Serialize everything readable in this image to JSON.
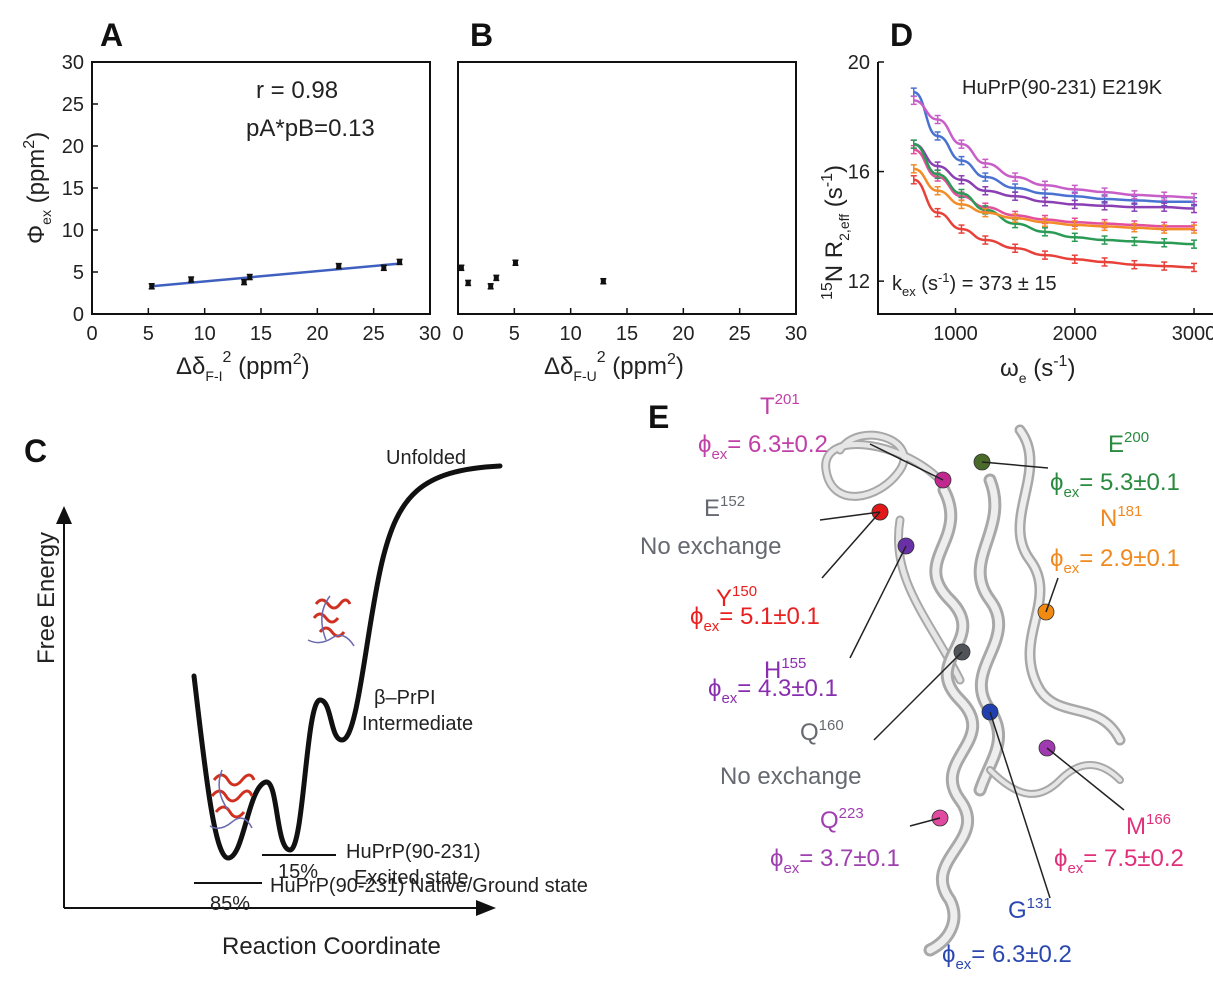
{
  "panel_labels": {
    "A": "A",
    "B": "B",
    "C": "C",
    "D": "D",
    "E": "E"
  },
  "chart_data": [
    {
      "id": "A",
      "type": "scatter",
      "xlim": [
        0,
        30
      ],
      "ylim": [
        0,
        30
      ],
      "xticks": [
        0,
        5,
        10,
        15,
        20,
        25,
        30
      ],
      "yticks": [
        0,
        5,
        10,
        15,
        20,
        25,
        30
      ],
      "xlabel": "Δδ",
      "xlabel_sub": "F-I",
      "xlabel_sup": "2",
      "xlabel_unit": " (ppm",
      "xlabel_unit_sup": "2",
      "xlabel_close": ")",
      "ylabel": "Φ",
      "ylabel_sub": "ex",
      "ylabel_unit": " (ppm",
      "ylabel_unit_sup": "2",
      "ylabel_close": ")",
      "annotations": [
        "r = 0.98",
        "pA*pB=0.13"
      ],
      "points": [
        {
          "x": 5.3,
          "y": 3.3,
          "err": 0.3
        },
        {
          "x": 8.8,
          "y": 4.1,
          "err": 0.3
        },
        {
          "x": 13.5,
          "y": 3.8,
          "err": 0.3
        },
        {
          "x": 14.0,
          "y": 4.4,
          "err": 0.3
        },
        {
          "x": 21.9,
          "y": 5.7,
          "err": 0.3
        },
        {
          "x": 25.9,
          "y": 5.5,
          "err": 0.3
        },
        {
          "x": 27.3,
          "y": 6.2,
          "err": 0.3
        }
      ],
      "fit": {
        "x": [
          5.3,
          27.3
        ],
        "y": [
          3.3,
          6.0
        ],
        "color": "#4060c0"
      }
    },
    {
      "id": "B",
      "type": "scatter",
      "xlim": [
        0,
        30
      ],
      "ylim": [
        0,
        30
      ],
      "xticks": [
        0,
        5,
        10,
        15,
        20,
        25,
        30
      ],
      "xlabel": "Δδ",
      "xlabel_sub": "F-U",
      "xlabel_sup": "2",
      "xlabel_unit": " (ppm",
      "xlabel_unit_sup": "2",
      "xlabel_close": ")",
      "points": [
        {
          "x": 0.3,
          "y": 5.5,
          "err": 0.3
        },
        {
          "x": 0.9,
          "y": 3.7,
          "err": 0.3
        },
        {
          "x": 2.9,
          "y": 3.3,
          "err": 0.3
        },
        {
          "x": 3.4,
          "y": 4.3,
          "err": 0.3
        },
        {
          "x": 5.1,
          "y": 6.1,
          "err": 0.3
        },
        {
          "x": 12.9,
          "y": 3.9,
          "err": 0.3
        }
      ]
    },
    {
      "id": "D",
      "type": "line",
      "xlim": [
        350,
        3050
      ],
      "ylim": [
        10.8,
        20
      ],
      "xticks": [
        1000,
        2000,
        3000
      ],
      "yticks": [
        12,
        16,
        20
      ],
      "xlabel": "ω",
      "xlabel_sub": "e",
      "xlabel_unit": " (s",
      "xlabel_unit_sup": "-1",
      "xlabel_close": ")",
      "ylabel_pre_sup": "15",
      "ylabel": "N R",
      "ylabel_sub": "2,eff",
      "ylabel_unit": " (s",
      "ylabel_unit_sup": "-1",
      "ylabel_close": ")",
      "annotation": "HuPrP(90-231) E219K",
      "kex_label": "k",
      "kex_sub": "ex",
      "kex_unit": " (s",
      "kex_sup": "-1",
      "kex_value": ") = 373 ± 15",
      "x": [
        650,
        850,
        1050,
        1250,
        1500,
        1750,
        2000,
        2250,
        2500,
        2750,
        3000
      ],
      "series": [
        {
          "color": "#4a72d0",
          "values": [
            18.9,
            17.3,
            16.4,
            15.8,
            15.4,
            15.2,
            15.1,
            15.0,
            14.95,
            14.9,
            14.9
          ]
        },
        {
          "color": "#c85fc8",
          "values": [
            18.6,
            17.9,
            17.0,
            16.3,
            15.8,
            15.5,
            15.35,
            15.25,
            15.15,
            15.1,
            15.05
          ]
        },
        {
          "color": "#8a3fb3",
          "values": [
            17.0,
            16.2,
            15.7,
            15.3,
            15.1,
            14.9,
            14.8,
            14.75,
            14.7,
            14.7,
            14.65
          ]
        },
        {
          "color": "#e34f9a",
          "values": [
            16.8,
            15.8,
            15.1,
            14.7,
            14.4,
            14.25,
            14.15,
            14.1,
            14.05,
            14.0,
            14.0
          ]
        },
        {
          "color": "#2a9a55",
          "values": [
            17.0,
            15.9,
            15.2,
            14.6,
            14.1,
            13.8,
            13.6,
            13.5,
            13.45,
            13.4,
            13.35
          ]
        },
        {
          "color": "#f28c28",
          "values": [
            16.1,
            15.3,
            14.8,
            14.5,
            14.3,
            14.15,
            14.05,
            14.0,
            13.95,
            13.9,
            13.9
          ]
        },
        {
          "color": "#e8413a",
          "values": [
            15.7,
            14.5,
            13.9,
            13.5,
            13.2,
            12.95,
            12.8,
            12.7,
            12.6,
            12.55,
            12.5
          ]
        }
      ]
    }
  ],
  "panel_c": {
    "ylabel": "Free Energy",
    "xlabel": "Reaction Coordinate",
    "unfolded": "Unfolded",
    "intermediate_1": "β–PrPI",
    "intermediate_2": "Intermediate",
    "excited_1": "HuPrP(90-231)",
    "excited_2": "Excited state",
    "native": "HuPrP(90-231) Native/Ground state",
    "pct_excited": "15%",
    "pct_native": "85%"
  },
  "panel_e": {
    "residues": [
      {
        "name": "T",
        "sup": "201",
        "phi": "= 6.3±0.2",
        "color": "#c040a8",
        "ball": "#c02890"
      },
      {
        "name": "E",
        "sup": "200",
        "phi": "= 5.3±0.1",
        "color": "#2a8a40",
        "ball": "#4a6a2a"
      },
      {
        "name": "N",
        "sup": "181",
        "phi": "= 2.9±0.1",
        "color": "#f08a20",
        "ball": "#f08a10"
      },
      {
        "name": "E",
        "sup": "152",
        "note": "No exchange",
        "color": "#666a70",
        "ball": "#666a70"
      },
      {
        "name": "Y",
        "sup": "150",
        "phi": "= 5.1±0.1",
        "color": "#e82020",
        "ball": "#e01818"
      },
      {
        "name": "H",
        "sup": "155",
        "phi": "= 4.3±0.1",
        "color": "#8a2eb0",
        "ball": "#6a30a8"
      },
      {
        "name": "Q",
        "sup": "160",
        "note": "No exchange",
        "color": "#666a70",
        "ball": "#505458"
      },
      {
        "name": "Q",
        "sup": "223",
        "phi": "= 3.7±0.1",
        "color": "#a040b0",
        "ball": "#e04aa0"
      },
      {
        "name": "M",
        "sup": "166",
        "phi": "= 7.5±0.2",
        "color": "#e0307a",
        "ball": "#a03ab0"
      },
      {
        "name": "G",
        "sup": "131",
        "phi": "= 6.3±0.2",
        "color": "#2a48b0",
        "ball": "#2040b0"
      }
    ],
    "phi_symbol": "ϕ",
    "phi_sub": "ex"
  }
}
